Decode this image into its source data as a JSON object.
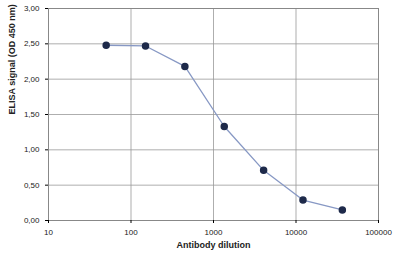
{
  "chart_data": {
    "type": "line",
    "x_label": "Antibody dilution",
    "y_label": "ELISA signal (OD 450 nm)",
    "x": [
      50,
      150,
      450,
      1350,
      4050,
      12150,
      36450
    ],
    "values": [
      2.48,
      2.47,
      2.18,
      1.33,
      0.71,
      0.29,
      0.15
    ],
    "color": "#8798c4",
    "marker": "circle",
    "log": "x",
    "grid": true,
    "xlim": [
      10,
      100000
    ],
    "xticks": [
      10,
      100,
      1000,
      10000,
      100000
    ],
    "ylim": [
      0,
      3
    ],
    "yticks": [
      {
        "value": 0,
        "label": "0,00"
      },
      {
        "value": 0.5,
        "label": "0,50"
      },
      {
        "value": 1,
        "label": "1,00"
      },
      {
        "value": 1.5,
        "label": "1,50"
      },
      {
        "value": 2,
        "label": "2,00"
      },
      {
        "value": 2.5,
        "label": "2,50"
      },
      {
        "value": 3,
        "label": "3,00"
      }
    ]
  }
}
